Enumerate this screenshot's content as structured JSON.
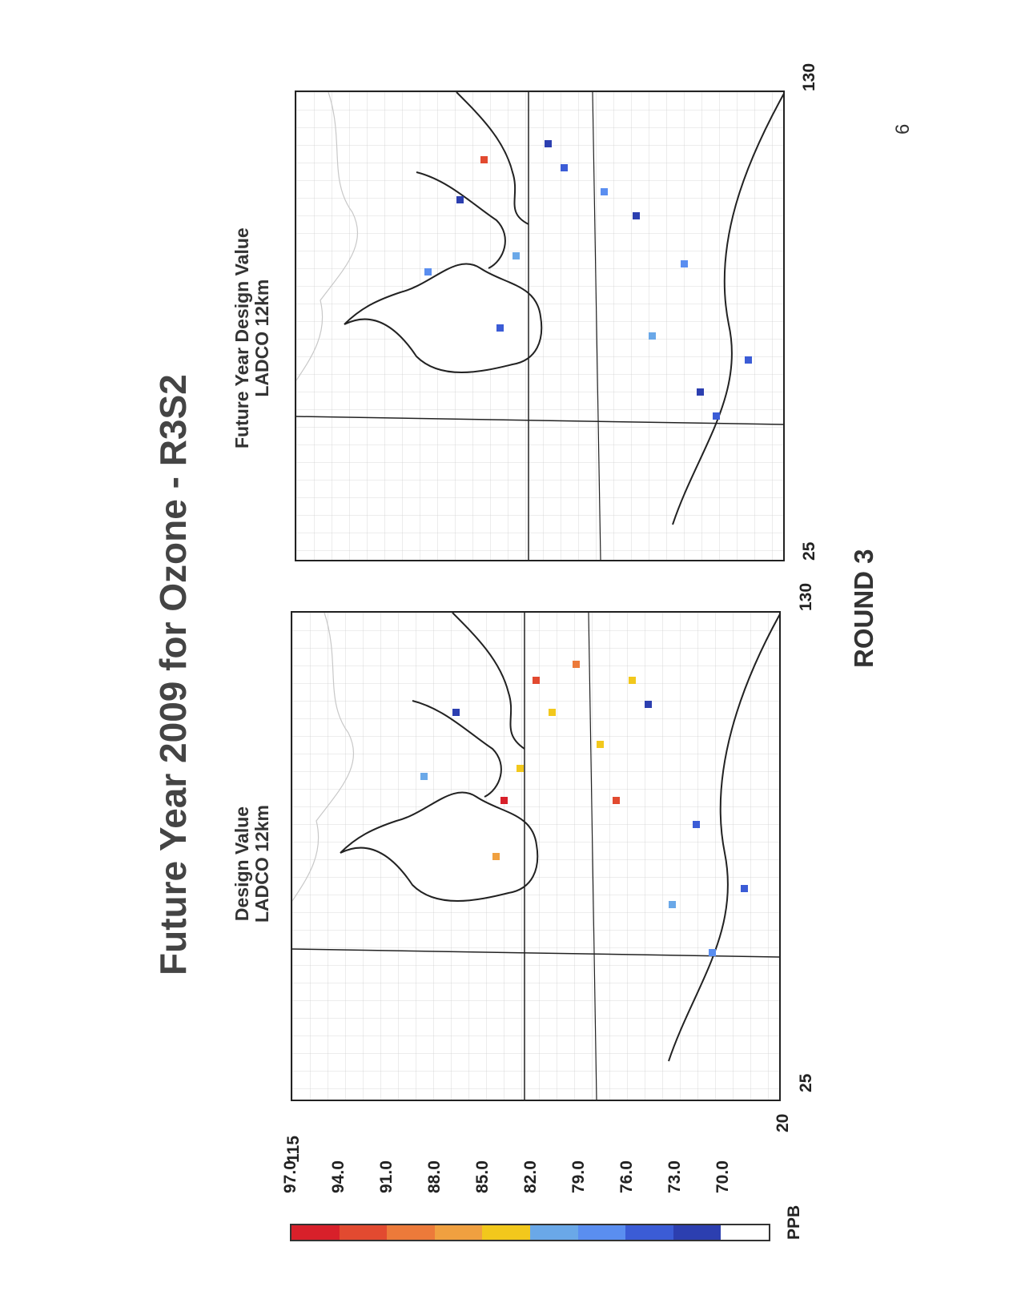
{
  "page": {
    "title": "Future Year 2009 for Ozone - R3S2",
    "footer": "ROUND 3",
    "page_number": "6"
  },
  "maps": [
    {
      "title_line1": "Design Value",
      "title_line2": "LADCO 12km",
      "x_start_label": "25",
      "x_end_label": "130",
      "y_start_label": "20",
      "y_end_label": "115"
    },
    {
      "title_line1": "Future Year Design Value",
      "title_line2": "LADCO 12km",
      "x_start_label": "25",
      "x_end_label": "130"
    }
  ],
  "legend": {
    "unit": "PPB",
    "labels": [
      "70.0",
      "73.0",
      "76.0",
      "79.0",
      "82.0",
      "85.0",
      "88.0",
      "91.0",
      "94.0",
      "97.0"
    ],
    "colors": [
      "#ffffff",
      "#2c3fb0",
      "#3b5cd6",
      "#5a8ef0",
      "#6aa8e8",
      "#f2c81c",
      "#f0a040",
      "#ec7a3a",
      "#e24a30",
      "#d8202a"
    ]
  }
}
